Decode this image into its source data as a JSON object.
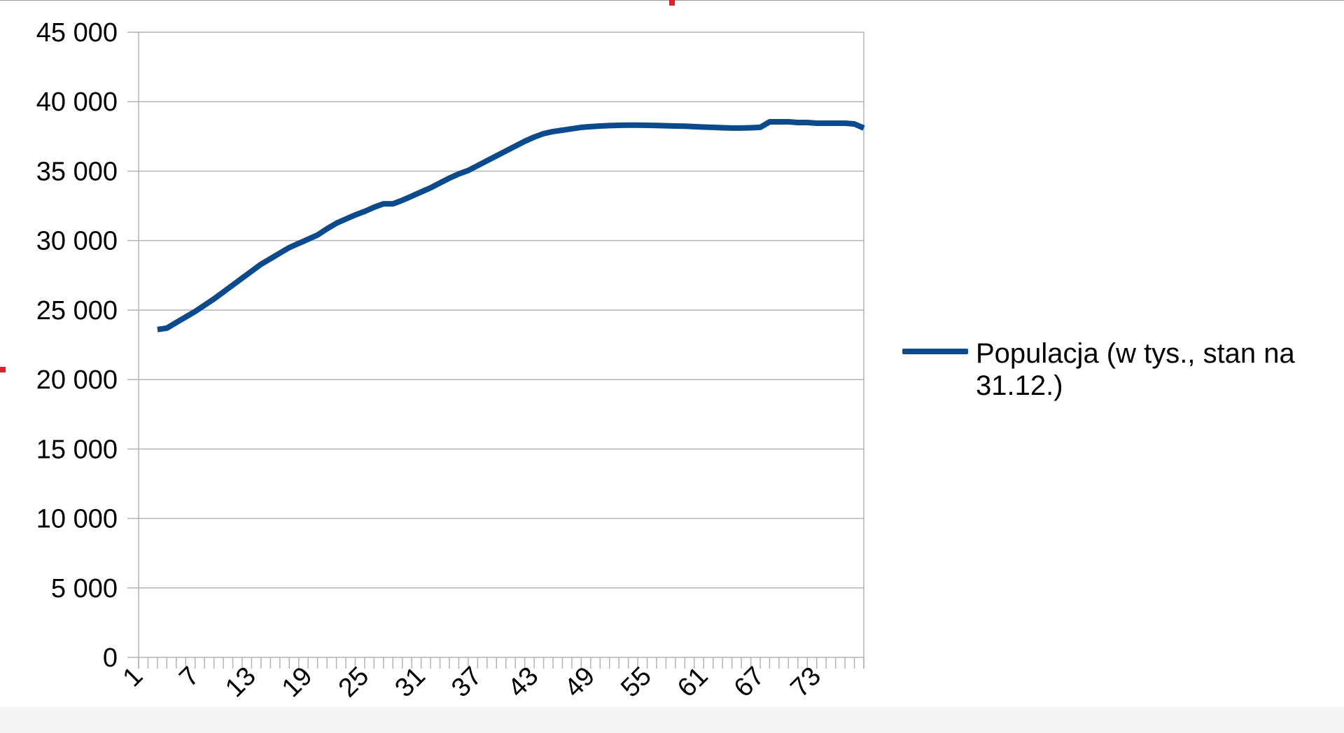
{
  "chart_data": {
    "type": "line",
    "title": "",
    "xlabel": "",
    "ylabel": "",
    "x_range": [
      1,
      78
    ],
    "ylim": [
      0,
      45000
    ],
    "y_ticks": [
      0,
      5000,
      10000,
      15000,
      20000,
      25000,
      30000,
      35000,
      40000,
      45000
    ],
    "y_tick_labels": [
      "0",
      "5 000",
      "10 000",
      "15 000",
      "20 000",
      "25 000",
      "30 000",
      "35 000",
      "40 000",
      "45 000"
    ],
    "x_tick_labels": [
      "1",
      "7",
      "13",
      "19",
      "25",
      "31",
      "37",
      "43",
      "49",
      "55",
      "61",
      "67",
      "73"
    ],
    "grid": "horizontal",
    "legend_position": "right",
    "series": [
      {
        "name": "Populacja (w tys., stan na 31.12.)",
        "color": "#0b4a8c",
        "x": [
          3,
          4,
          5,
          6,
          7,
          8,
          9,
          10,
          11,
          12,
          13,
          14,
          15,
          16,
          17,
          18,
          19,
          20,
          21,
          22,
          23,
          24,
          25,
          26,
          27,
          28,
          29,
          30,
          31,
          32,
          33,
          34,
          35,
          36,
          37,
          38,
          39,
          40,
          41,
          42,
          43,
          44,
          45,
          46,
          47,
          48,
          49,
          50,
          51,
          52,
          53,
          54,
          55,
          56,
          57,
          58,
          59,
          60,
          61,
          62,
          63,
          64,
          65,
          66,
          67,
          68,
          69,
          70,
          71,
          72,
          73,
          74,
          75,
          76,
          77,
          78
        ],
        "values": [
          23600,
          23700,
          24100,
          24500,
          24900,
          25350,
          25800,
          26300,
          26800,
          27300,
          27800,
          28300,
          28700,
          29100,
          29500,
          29800,
          30100,
          30400,
          30850,
          31250,
          31550,
          31850,
          32100,
          32400,
          32650,
          32650,
          32900,
          33200,
          33500,
          33800,
          34150,
          34500,
          34800,
          35050,
          35400,
          35750,
          36100,
          36450,
          36800,
          37150,
          37450,
          37700,
          37850,
          37950,
          38050,
          38150,
          38200,
          38250,
          38280,
          38300,
          38310,
          38310,
          38300,
          38290,
          38270,
          38250,
          38230,
          38200,
          38170,
          38150,
          38120,
          38100,
          38100,
          38120,
          38150,
          38550,
          38550,
          38550,
          38500,
          38500,
          38450,
          38450,
          38450,
          38450,
          38400,
          38100
        ]
      }
    ]
  }
}
